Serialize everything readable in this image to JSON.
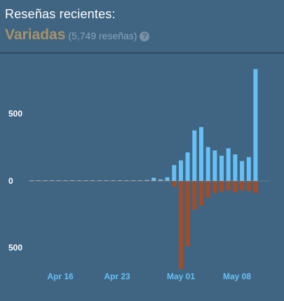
{
  "header": {
    "title": "Reseñas recientes:",
    "rating": "Variadas",
    "count": "(5,749 reseñas)",
    "help_icon": "question-circle-icon"
  },
  "colors": {
    "background": "#3f6583",
    "positive": "#66c0f4",
    "negative": "#a34c25",
    "rating": "#a8926a",
    "tick_text": "#ffffff",
    "date_text": "#66c0f4"
  },
  "chart_data": {
    "type": "bar",
    "stacked_diverging": true,
    "ylim": [
      -650,
      850
    ],
    "y_ticks": [
      500,
      0,
      -500
    ],
    "y_tick_labels": [
      "500",
      "0",
      "500"
    ],
    "x_tick_labels": [
      "Apr 16",
      "Apr 23",
      "May 01",
      "May 08"
    ],
    "series": [
      {
        "name": "positive",
        "values": [
          2,
          2,
          2,
          2,
          2,
          2,
          2,
          3,
          3,
          2,
          3,
          3,
          3,
          3,
          5,
          4,
          3,
          8,
          25,
          12,
          28,
          120,
          155,
          215,
          380,
          405,
          255,
          230,
          190,
          245,
          200,
          150,
          180,
          840
        ]
      },
      {
        "name": "negative",
        "values": [
          -1,
          -1,
          -1,
          -1,
          -1,
          -1,
          -1,
          -1,
          -1,
          -1,
          -1,
          -1,
          -1,
          -1,
          -2,
          -2,
          -1,
          -2,
          -2,
          -3,
          -3,
          -40,
          -660,
          -490,
          -215,
          -185,
          -125,
          -90,
          -80,
          -70,
          -85,
          -70,
          -75,
          -90
        ]
      }
    ]
  }
}
